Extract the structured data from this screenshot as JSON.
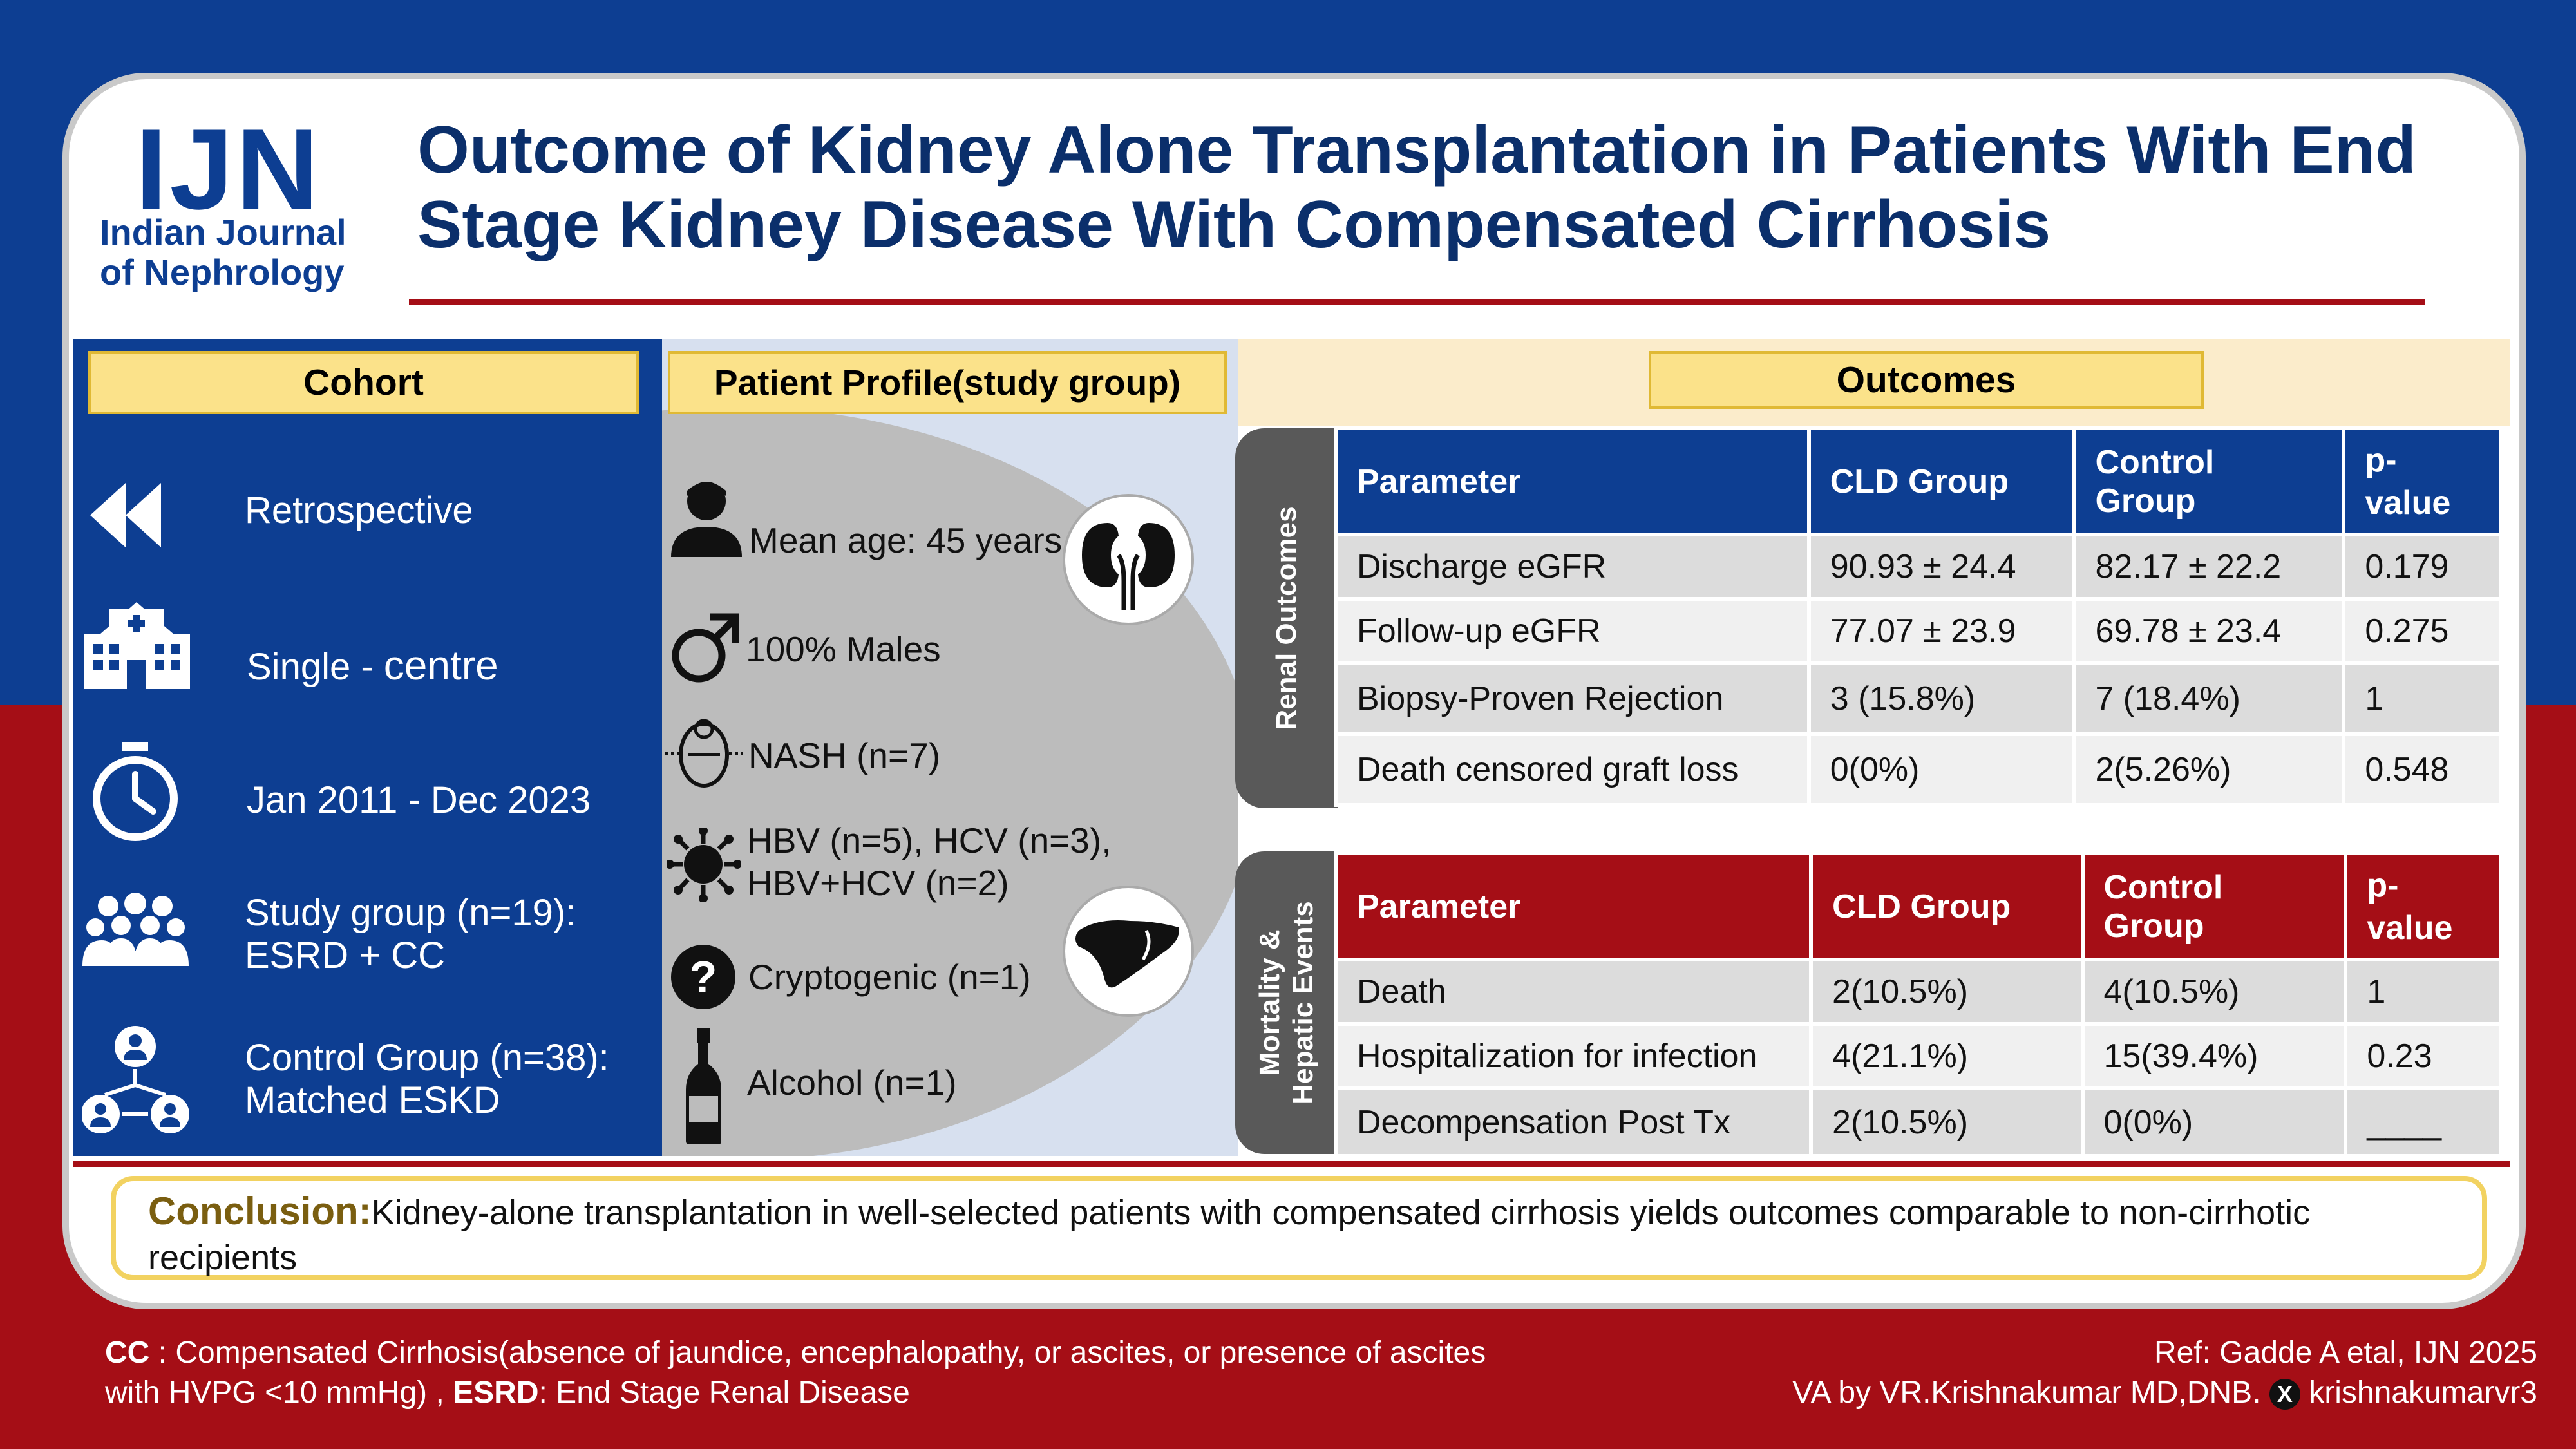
{
  "journal": {
    "abbr": "IJN",
    "name_line1": "Indian Journal",
    "name_line2": "of Nephrology"
  },
  "title": "Outcome of Kidney Alone Transplantation in Patients With End Stage Kidney Disease With Compensated Cirrhosis",
  "cohort": {
    "label": "Cohort",
    "items": [
      {
        "icon": "rewind-icon",
        "text": "Retrospective"
      },
      {
        "icon": "hospital-icon",
        "text_a": "Single - ",
        "text_b": "centre"
      },
      {
        "icon": "stopwatch-icon",
        "text": "Jan 2011 -  Dec 2023"
      },
      {
        "icon": "group-icon",
        "line1": "Study group (n=19):",
        "line2": "ESRD + CC"
      },
      {
        "icon": "network-icon",
        "line1": "Control Group (n=38):",
        "line2": "Matched ESKD"
      }
    ]
  },
  "profile": {
    "label": "Patient Profile(study group)",
    "items": [
      {
        "icon": "person-icon",
        "text": "Mean age: 45 years"
      },
      {
        "icon": "male-symbol-icon",
        "text": "100% Males"
      },
      {
        "icon": "liver-fat-icon",
        "text": "NASH (n=7)"
      },
      {
        "icon": "virus-icon",
        "line1": "HBV (n=5), HCV (n=3),",
        "line2": "HBV+HCV (n=2)"
      },
      {
        "icon": "question-icon",
        "text": "Cryptogenic (n=1)"
      },
      {
        "icon": "bottle-icon",
        "text": "Alcohol (n=1)"
      }
    ],
    "badges": [
      "kidney-icon",
      "liver-icon"
    ]
  },
  "outcomes": {
    "label": "Outcomes",
    "renal": {
      "tab": "Renal Outcomes",
      "headers": [
        "Parameter",
        "CLD Group",
        "Control Group",
        "p-",
        "value"
      ],
      "rows": [
        [
          "Discharge eGFR",
          "90.93 ± 24.4",
          "82.17 ± 22.2",
          "0.179"
        ],
        [
          "Follow-up eGFR",
          "77.07 ± 23.9",
          "69.78 ± 23.4",
          "0.275"
        ],
        [
          "Biopsy-Proven Rejection",
          "3 (15.8%)",
          "7 (18.4%)",
          "1"
        ],
        [
          "Death censored graft loss",
          "0(0%)",
          "2(5.26%)",
          "0.548"
        ]
      ]
    },
    "mortality": {
      "tab_line1": "Mortality &",
      "tab_line2": "Hepatic Events",
      "headers": [
        "Parameter",
        "CLD Group",
        "Control Group",
        "p-",
        "value"
      ],
      "rows": [
        [
          "Death",
          "2(10.5%)",
          "4(10.5%)",
          "1"
        ],
        [
          "Hospitalization for infection",
          "4(21.1%)",
          "15(39.4%)",
          "0.23"
        ],
        [
          "Decompensation Post Tx",
          "2(10.5%)",
          "0(0%)",
          "____"
        ]
      ]
    }
  },
  "conclusion": {
    "head": "Conclusion:",
    "text": "Kidney-alone transplantation in well-selected patients with compensated cirrhosis yields outcomes comparable to non-cirrhotic recipients"
  },
  "footer": {
    "cc_abbr": "CC",
    "cc_def": " : Compensated Cirrhosis(absence of jaundice, encephalopathy, or ascites, or presence of ascites",
    "cc_def2": "with HVPG <10 mmHg) , ",
    "esrd_abbr": "ESRD",
    "esrd_def": ": End Stage Renal Disease",
    "ref": "Ref: Gadde A etal, IJN 2025",
    "va": "VA by VR.Krishnakumar MD,DNB.",
    "handle": "krishnakumarvr3"
  },
  "colors": {
    "blue": "#0d3e92",
    "red": "#a50e16",
    "yellow": "#fbe28a",
    "gray": "#bcbcbc"
  }
}
